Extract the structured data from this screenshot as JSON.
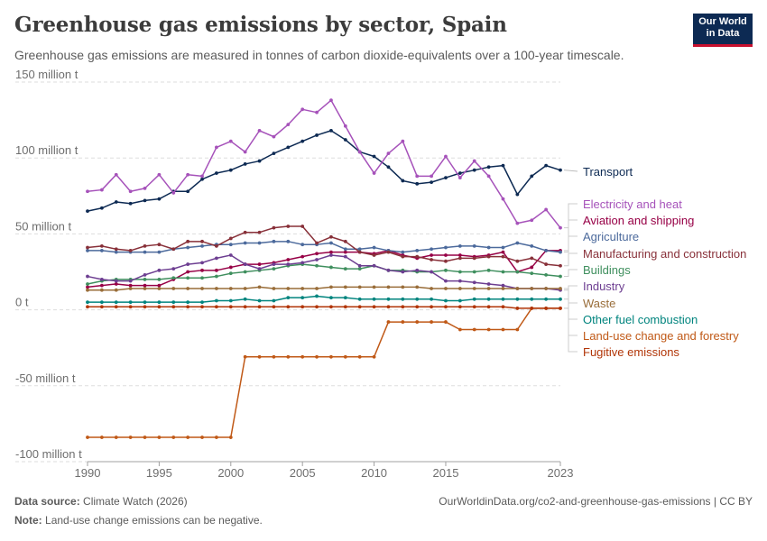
{
  "header": {
    "title": "Greenhouse gas emissions by sector, Spain",
    "subtitle": "Greenhouse gas emissions are measured in tonnes of carbon dioxide-equivalents over a 100-year timescale.",
    "logo_line1": "Our World",
    "logo_line2": "in Data"
  },
  "footer": {
    "source_label": "Data source:",
    "source_text": "Climate Watch (2026)",
    "note_label": "Note:",
    "note_text": "Land-use change emissions can be negative.",
    "credit": "OurWorldinData.org/co2-and-greenhouse-gas-emissions | CC BY"
  },
  "chart_data": {
    "type": "line",
    "title": "Greenhouse gas emissions by sector, Spain",
    "ylim": [
      -100,
      150
    ],
    "xlim": [
      1990,
      2023
    ],
    "yticks": [
      -100,
      -50,
      0,
      50,
      100,
      150
    ],
    "ytick_labels": [
      "-100 million t",
      "-50 million t",
      "0 t",
      "50 million t",
      "100 million t",
      "150 million t"
    ],
    "xticks": [
      1990,
      1995,
      2000,
      2005,
      2010,
      2015,
      2023
    ],
    "grid": "horizontal dashed",
    "legend_placement": "right, labels at line ends",
    "x": [
      1990,
      1991,
      1992,
      1993,
      1994,
      1995,
      1996,
      1997,
      1998,
      1999,
      2000,
      2001,
      2002,
      2003,
      2004,
      2005,
      2006,
      2007,
      2008,
      2009,
      2010,
      2011,
      2012,
      2013,
      2014,
      2015,
      2016,
      2017,
      2018,
      2019,
      2020,
      2021,
      2022,
      2023
    ],
    "series": [
      {
        "name": "Transport",
        "color": "#0d2a53",
        "values": [
          65,
          67,
          71,
          70,
          72,
          73,
          78,
          78,
          86,
          90,
          92,
          96,
          98,
          103,
          107,
          111,
          115,
          118,
          112,
          104,
          101,
          94,
          85,
          83,
          84,
          87,
          90,
          92,
          94,
          95,
          76,
          88,
          95,
          92
        ]
      },
      {
        "name": "Electricity and heat",
        "color": "#a652ba",
        "values": [
          78,
          79,
          89,
          78,
          80,
          89,
          77,
          89,
          88,
          107,
          111,
          104,
          118,
          114,
          122,
          132,
          130,
          138,
          121,
          104,
          90,
          103,
          111,
          88,
          88,
          101,
          87,
          98,
          88,
          73,
          57,
          59,
          66,
          54
        ]
      },
      {
        "name": "Aviation and shipping",
        "color": "#970046",
        "values": [
          15,
          16,
          17,
          16,
          16,
          16,
          20,
          25,
          26,
          26,
          28,
          30,
          30,
          31,
          33,
          35,
          37,
          38,
          38,
          38,
          37,
          39,
          36,
          34,
          36,
          36,
          36,
          35,
          36,
          38,
          25,
          28,
          39,
          39
        ]
      },
      {
        "name": "Agriculture",
        "color": "#4c6a9c",
        "values": [
          39,
          39,
          38,
          38,
          38,
          38,
          40,
          41,
          42,
          43,
          43,
          44,
          44,
          45,
          45,
          43,
          43,
          44,
          40,
          40,
          41,
          39,
          38,
          39,
          40,
          41,
          42,
          42,
          41,
          41,
          44,
          42,
          39,
          38
        ]
      },
      {
        "name": "Manufacturing and construction",
        "color": "#883039",
        "values": [
          41,
          42,
          40,
          39,
          42,
          43,
          40,
          45,
          45,
          42,
          47,
          51,
          51,
          54,
          55,
          55,
          44,
          48,
          45,
          38,
          36,
          38,
          35,
          35,
          33,
          32,
          34,
          34,
          35,
          35,
          32,
          34,
          30,
          29
        ]
      },
      {
        "name": "Buildings",
        "color": "#3f8f5e",
        "values": [
          17,
          19,
          20,
          20,
          20,
          20,
          21,
          21,
          21,
          22,
          24,
          25,
          26,
          27,
          29,
          30,
          29,
          28,
          27,
          27,
          29,
          26,
          26,
          25,
          25,
          26,
          25,
          25,
          26,
          25,
          25,
          24,
          23,
          22
        ]
      },
      {
        "name": "Industry",
        "color": "#6d3e91",
        "values": [
          22,
          20,
          19,
          19,
          23,
          26,
          27,
          30,
          31,
          34,
          36,
          30,
          27,
          30,
          30,
          31,
          33,
          36,
          35,
          29,
          29,
          26,
          25,
          26,
          25,
          19,
          19,
          18,
          17,
          16,
          14,
          14,
          14,
          13
        ]
      },
      {
        "name": "Waste",
        "color": "#996d39",
        "values": [
          13,
          13,
          13,
          14,
          14,
          14,
          14,
          14,
          14,
          14,
          14,
          14,
          15,
          14,
          14,
          14,
          14,
          15,
          15,
          15,
          15,
          15,
          15,
          15,
          14,
          14,
          14,
          14,
          14,
          14,
          14,
          14,
          14,
          14
        ]
      },
      {
        "name": "Other fuel combustion",
        "color": "#00847e",
        "values": [
          5,
          5,
          5,
          5,
          5,
          5,
          5,
          5,
          5,
          6,
          6,
          7,
          6,
          6,
          8,
          8,
          9,
          8,
          8,
          7,
          7,
          7,
          7,
          7,
          7,
          6,
          6,
          7,
          7,
          7,
          7,
          7,
          7,
          7
        ]
      },
      {
        "name": "Land-use change and forestry",
        "color": "#c05917",
        "values": [
          -84,
          -84,
          -84,
          -84,
          -84,
          -84,
          -84,
          -84,
          -84,
          -84,
          -84,
          -31,
          -31,
          -31,
          -31,
          -31,
          -31,
          -31,
          -31,
          -31,
          -31,
          -8,
          -8,
          -8,
          -8,
          -8,
          -13,
          -13,
          -13,
          -13,
          -13,
          1,
          1,
          1
        ]
      },
      {
        "name": "Fugitive emissions",
        "color": "#b13507",
        "values": [
          2,
          2,
          2,
          2,
          2,
          2,
          2,
          2,
          2,
          2,
          2,
          2,
          2,
          2,
          2,
          2,
          2,
          2,
          2,
          2,
          2,
          2,
          2,
          2,
          2,
          2,
          2,
          2,
          2,
          2,
          1,
          1,
          1,
          1
        ]
      }
    ]
  }
}
